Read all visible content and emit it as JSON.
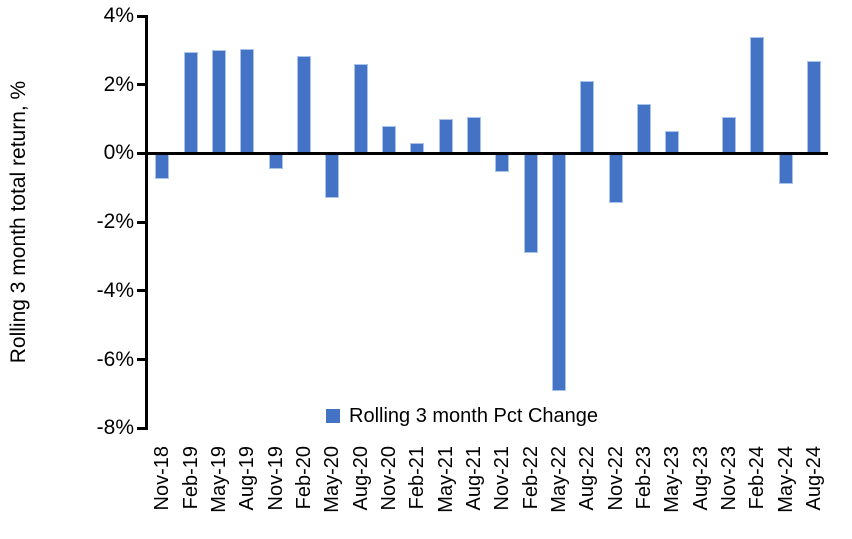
{
  "chart": {
    "legend_label": "Rolling 3 month Pct Change"
  },
  "chart_data": {
    "type": "bar",
    "title": "",
    "xlabel": "",
    "ylabel": "Rolling 3 month total return, %",
    "ylim": [
      -8,
      4
    ],
    "yticks": [
      4,
      2,
      0,
      -2,
      -4,
      -6,
      -8
    ],
    "ytick_labels": [
      "4%",
      "2%",
      "0%",
      "-2%",
      "-4%",
      "-6%",
      "-8%"
    ],
    "grid": false,
    "legend_position": "bottom-center",
    "categories": [
      "Nov-18",
      "Feb-19",
      "May-19",
      "Aug-19",
      "Nov-19",
      "Feb-20",
      "May-20",
      "Aug-20",
      "Nov-20",
      "Feb-21",
      "May-21",
      "Aug-21",
      "Nov-21",
      "Feb-22",
      "May-22",
      "Aug-22",
      "Nov-22",
      "Feb-23",
      "May-23",
      "Aug-23",
      "Nov-23",
      "Feb-24",
      "May-24",
      "Aug-24"
    ],
    "series": [
      {
        "name": "Rolling 3 month Pct Change",
        "values": [
          -0.75,
          2.95,
          3.0,
          3.05,
          -0.45,
          2.85,
          -1.3,
          2.6,
          0.8,
          0.3,
          1.0,
          1.05,
          -0.55,
          -2.9,
          -6.9,
          2.1,
          -1.45,
          1.45,
          0.65,
          0.0,
          1.05,
          3.4,
          -0.9,
          2.7
        ]
      }
    ],
    "colors": {
      "bar": "#4472C4",
      "bar_edge": "#A9C4EA",
      "axis": "#000000",
      "text": "#000000",
      "background": "#FFFFFF"
    }
  }
}
